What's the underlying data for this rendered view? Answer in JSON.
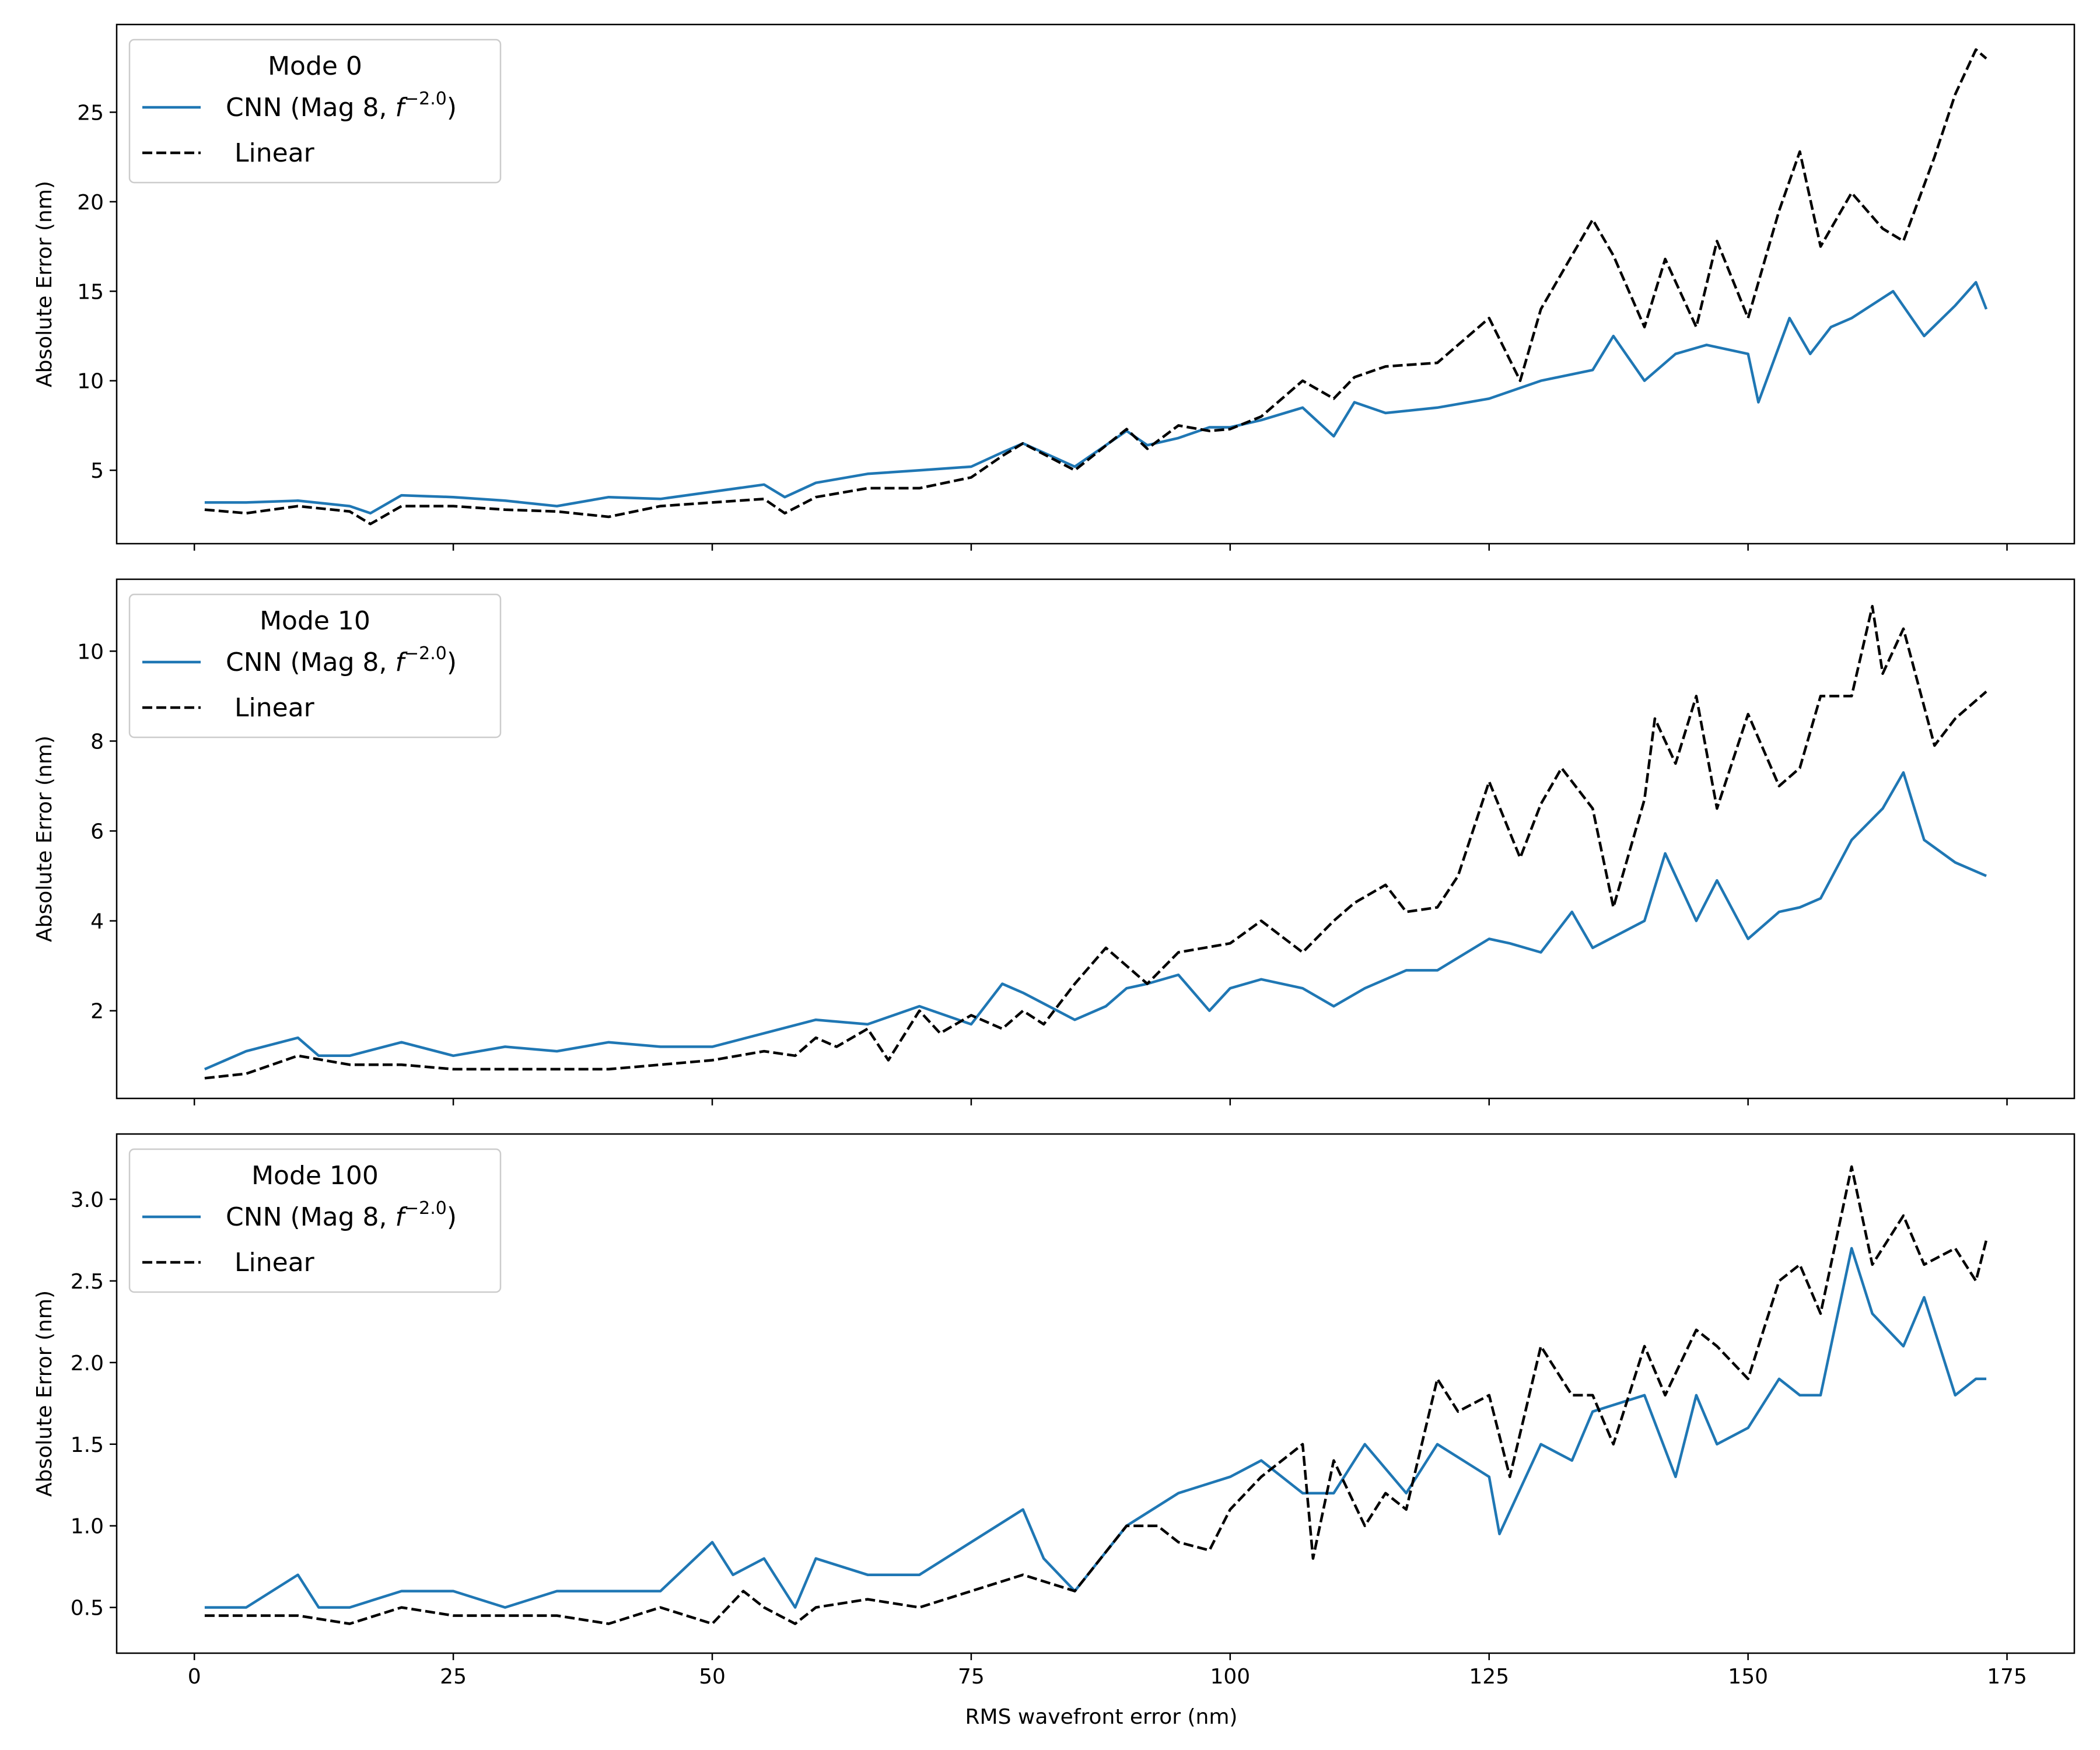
{
  "figure": {
    "xlabel": "RMS wavefront error (nm)",
    "ylabel": "Absolute Error (nm)",
    "x_ticks": [
      "0",
      "25",
      "50",
      "75",
      "100",
      "125",
      "150",
      "175"
    ]
  },
  "colors": {
    "cnn": "#1f77b4",
    "linear": "#000000",
    "axes": "#000000",
    "legend_border": "#cccccc"
  },
  "legend_labels": {
    "cnn_prefix": "CNN (Mag 8, ",
    "cnn_f": "f",
    "cnn_exp": "−2.0",
    "cnn_suffix": ")",
    "linear": "Linear"
  },
  "chart_data": [
    {
      "type": "line",
      "title": "Mode 0",
      "xlabel": "",
      "ylabel": "Absolute Error (nm)",
      "xlim": [
        -7.5,
        181.5
      ],
      "ylim": [
        0.9,
        29.9
      ],
      "xticks": [
        0,
        25,
        50,
        75,
        100,
        125,
        150,
        175
      ],
      "yticks": [
        5,
        10,
        15,
        20,
        25
      ],
      "ytick_labels": [
        "5",
        "10",
        "15",
        "20",
        "25"
      ],
      "grid": false,
      "legend": "top-left",
      "series": [
        {
          "name": "CNN (Mag 8, f^−2.0)",
          "style": "solid",
          "x": [
            1,
            5,
            10,
            15,
            17,
            20,
            25,
            30,
            35,
            40,
            45,
            50,
            55,
            57,
            60,
            65,
            70,
            75,
            78,
            80,
            85,
            90,
            92,
            95,
            98,
            100,
            103,
            107,
            110,
            112,
            115,
            120,
            125,
            130,
            135,
            137,
            140,
            143,
            146,
            150,
            151,
            154,
            156,
            158,
            160,
            164,
            167,
            170,
            172,
            173
          ],
          "y": [
            3.2,
            3.2,
            3.3,
            3.0,
            2.6,
            3.6,
            3.5,
            3.3,
            3.0,
            3.5,
            3.4,
            3.8,
            4.2,
            3.5,
            4.3,
            4.8,
            5.0,
            5.2,
            6.0,
            6.5,
            5.2,
            7.2,
            6.4,
            6.8,
            7.4,
            7.4,
            7.8,
            8.5,
            6.9,
            8.8,
            8.2,
            8.5,
            9.0,
            10.0,
            10.6,
            12.5,
            10.0,
            11.5,
            12.0,
            11.5,
            8.8,
            13.5,
            11.5,
            13.0,
            13.5,
            15.0,
            12.5,
            14.2,
            15.5,
            14.0
          ]
        },
        {
          "name": "Linear",
          "style": "dashed",
          "x": [
            1,
            5,
            10,
            15,
            17,
            20,
            25,
            30,
            35,
            40,
            45,
            50,
            55,
            57,
            60,
            65,
            70,
            75,
            78,
            80,
            85,
            90,
            92,
            95,
            98,
            100,
            103,
            107,
            110,
            112,
            115,
            120,
            122,
            125,
            128,
            130,
            133,
            135,
            137,
            140,
            142,
            145,
            147,
            150,
            153,
            155,
            157,
            160,
            163,
            165,
            168,
            170,
            172,
            173
          ],
          "y": [
            2.8,
            2.6,
            3.0,
            2.7,
            2.0,
            3.0,
            3.0,
            2.8,
            2.7,
            2.4,
            3.0,
            3.2,
            3.4,
            2.6,
            3.5,
            4.0,
            4.0,
            4.6,
            5.8,
            6.5,
            5.0,
            7.3,
            6.2,
            7.5,
            7.2,
            7.3,
            8.0,
            10.0,
            9.0,
            10.2,
            10.8,
            11.0,
            12.0,
            13.5,
            10.0,
            14.0,
            17.0,
            19.0,
            17.0,
            13.0,
            16.8,
            13.0,
            17.8,
            13.5,
            19.5,
            22.8,
            17.5,
            20.5,
            18.5,
            17.8,
            22.5,
            26.0,
            28.5,
            28.0
          ]
        }
      ]
    },
    {
      "type": "line",
      "title": "Mode 10",
      "xlabel": "",
      "ylabel": "Absolute Error (nm)",
      "xlim": [
        -7.5,
        181.5
      ],
      "ylim": [
        0.05,
        11.6
      ],
      "xticks": [
        0,
        25,
        50,
        75,
        100,
        125,
        150,
        175
      ],
      "yticks": [
        2,
        4,
        6,
        8,
        10
      ],
      "ytick_labels": [
        "2",
        "4",
        "6",
        "8",
        "10"
      ],
      "grid": false,
      "legend": "top-left",
      "series": [
        {
          "name": "CNN (Mag 8, f^−2.0)",
          "style": "solid",
          "x": [
            1,
            5,
            10,
            12,
            15,
            20,
            25,
            30,
            35,
            40,
            45,
            50,
            55,
            60,
            65,
            70,
            75,
            78,
            80,
            85,
            88,
            90,
            92,
            95,
            98,
            100,
            103,
            107,
            110,
            113,
            117,
            120,
            125,
            127,
            130,
            133,
            135,
            140,
            142,
            145,
            147,
            150,
            153,
            155,
            157,
            160,
            163,
            165,
            167,
            170,
            173
          ],
          "y": [
            0.7,
            1.1,
            1.4,
            1.0,
            1.0,
            1.3,
            1.0,
            1.2,
            1.1,
            1.3,
            1.2,
            1.2,
            1.5,
            1.8,
            1.7,
            2.1,
            1.7,
            2.6,
            2.4,
            1.8,
            2.1,
            2.5,
            2.6,
            2.8,
            2.0,
            2.5,
            2.7,
            2.5,
            2.1,
            2.5,
            2.9,
            2.9,
            3.6,
            3.5,
            3.3,
            4.2,
            3.4,
            4.0,
            5.5,
            4.0,
            4.9,
            3.6,
            4.2,
            4.3,
            4.5,
            5.8,
            6.5,
            7.3,
            5.8,
            5.3,
            5.0
          ]
        },
        {
          "name": "Linear",
          "style": "dashed",
          "x": [
            1,
            5,
            10,
            15,
            20,
            25,
            30,
            35,
            40,
            45,
            50,
            55,
            58,
            60,
            62,
            65,
            67,
            70,
            72,
            75,
            78,
            80,
            82,
            85,
            88,
            90,
            92,
            95,
            100,
            103,
            107,
            110,
            112,
            115,
            117,
            120,
            122,
            125,
            128,
            130,
            132,
            135,
            137,
            140,
            141,
            143,
            145,
            147,
            150,
            153,
            155,
            157,
            160,
            162,
            163,
            165,
            168,
            170,
            173
          ],
          "y": [
            0.5,
            0.6,
            1.0,
            0.8,
            0.8,
            0.7,
            0.7,
            0.7,
            0.7,
            0.8,
            0.9,
            1.1,
            1.0,
            1.4,
            1.2,
            1.6,
            0.9,
            2.0,
            1.5,
            1.9,
            1.6,
            2.0,
            1.7,
            2.6,
            3.4,
            3.0,
            2.6,
            3.3,
            3.5,
            4.0,
            3.3,
            4.0,
            4.4,
            4.8,
            4.2,
            4.3,
            5.0,
            7.1,
            5.4,
            6.6,
            7.4,
            6.5,
            4.3,
            6.7,
            8.5,
            7.5,
            9.0,
            6.5,
            8.6,
            7.0,
            7.4,
            9.0,
            9.0,
            11.0,
            9.5,
            10.5,
            7.9,
            8.5,
            9.1
          ]
        }
      ]
    },
    {
      "type": "line",
      "title": "Mode 100",
      "xlabel": "RMS wavefront error (nm)",
      "ylabel": "Absolute Error (nm)",
      "xlim": [
        -7.5,
        181.5
      ],
      "ylim": [
        0.22,
        3.4
      ],
      "xticks": [
        0,
        25,
        50,
        75,
        100,
        125,
        150,
        175
      ],
      "yticks": [
        0.5,
        1.0,
        1.5,
        2.0,
        2.5,
        3.0
      ],
      "ytick_labels": [
        "0.5",
        "1.0",
        "1.5",
        "2.0",
        "2.5",
        "3.0"
      ],
      "grid": false,
      "legend": "top-left",
      "series": [
        {
          "name": "CNN (Mag 8, f^−2.0)",
          "style": "solid",
          "x": [
            1,
            5,
            10,
            12,
            15,
            20,
            25,
            30,
            35,
            40,
            45,
            50,
            52,
            55,
            58,
            60,
            65,
            70,
            75,
            80,
            82,
            85,
            90,
            95,
            100,
            103,
            107,
            110,
            113,
            117,
            120,
            125,
            126,
            130,
            133,
            135,
            140,
            143,
            145,
            147,
            150,
            153,
            155,
            157,
            160,
            162,
            165,
            167,
            170,
            172,
            173
          ],
          "y": [
            0.5,
            0.5,
            0.7,
            0.5,
            0.5,
            0.6,
            0.6,
            0.5,
            0.6,
            0.6,
            0.6,
            0.9,
            0.7,
            0.8,
            0.5,
            0.8,
            0.7,
            0.7,
            0.9,
            1.1,
            0.8,
            0.6,
            1.0,
            1.2,
            1.3,
            1.4,
            1.2,
            1.2,
            1.5,
            1.2,
            1.5,
            1.3,
            0.95,
            1.5,
            1.4,
            1.7,
            1.8,
            1.3,
            1.8,
            1.5,
            1.6,
            1.9,
            1.8,
            1.8,
            2.7,
            2.3,
            2.1,
            2.4,
            1.8,
            1.9,
            1.9
          ]
        },
        {
          "name": "Linear",
          "style": "dashed",
          "x": [
            1,
            5,
            10,
            15,
            20,
            25,
            30,
            35,
            40,
            45,
            50,
            53,
            55,
            58,
            60,
            65,
            70,
            75,
            80,
            85,
            90,
            93,
            95,
            98,
            100,
            103,
            107,
            108,
            110,
            113,
            115,
            117,
            120,
            122,
            125,
            127,
            130,
            133,
            135,
            137,
            140,
            142,
            145,
            147,
            150,
            153,
            155,
            157,
            160,
            162,
            165,
            167,
            170,
            172,
            173
          ],
          "y": [
            0.45,
            0.45,
            0.45,
            0.4,
            0.5,
            0.45,
            0.45,
            0.45,
            0.4,
            0.5,
            0.4,
            0.6,
            0.5,
            0.4,
            0.5,
            0.55,
            0.5,
            0.6,
            0.7,
            0.6,
            1.0,
            1.0,
            0.9,
            0.85,
            1.1,
            1.3,
            1.5,
            0.8,
            1.4,
            1.0,
            1.2,
            1.1,
            1.9,
            1.7,
            1.8,
            1.3,
            2.1,
            1.8,
            1.8,
            1.5,
            2.1,
            1.8,
            2.2,
            2.1,
            1.9,
            2.5,
            2.6,
            2.3,
            3.2,
            2.6,
            2.9,
            2.6,
            2.7,
            2.5,
            2.75
          ]
        }
      ]
    }
  ]
}
